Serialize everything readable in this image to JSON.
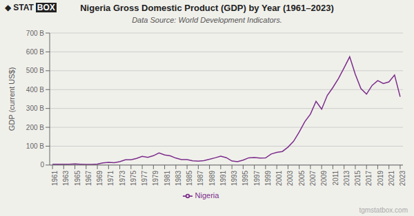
{
  "chart_data": {
    "type": "line",
    "title": "Nigeria Gross Domestic Product (GDP) by Year (1961–2023)",
    "subtitle": "Data Source: World Development Indicators.",
    "ylabel": "GDP (current US$)",
    "annotations": [
      "◆",
      "STAT",
      "BOX",
      "tgmstatbox.com"
    ],
    "x": [
      1961,
      1962,
      1963,
      1964,
      1965,
      1966,
      1967,
      1968,
      1969,
      1970,
      1971,
      1972,
      1973,
      1974,
      1975,
      1976,
      1977,
      1978,
      1979,
      1980,
      1981,
      1982,
      1983,
      1984,
      1985,
      1986,
      1987,
      1988,
      1989,
      1990,
      1991,
      1992,
      1993,
      1994,
      1995,
      1996,
      1997,
      1998,
      1999,
      2000,
      2001,
      2002,
      2003,
      2004,
      2005,
      2006,
      2007,
      2008,
      2009,
      2010,
      2011,
      2012,
      2013,
      2014,
      2015,
      2016,
      2017,
      2018,
      2019,
      2020,
      2021,
      2022,
      2023
    ],
    "series": [
      {
        "name": "Nigeria",
        "color": "#7B2D8B",
        "values": [
          4.2,
          3.9,
          3.9,
          4.4,
          5.8,
          4.6,
          3.7,
          3.7,
          5.2,
          11.5,
          14.4,
          12.7,
          18.1,
          28.0,
          27.7,
          35.3,
          46.0,
          41.0,
          49.5,
          64.2,
          53.6,
          48.9,
          36.7,
          28.6,
          29.0,
          22.4,
          20.6,
          23.6,
          30.7,
          38.5,
          47.3,
          39.0,
          21.2,
          17.8,
          26.0,
          38.3,
          40.1,
          36.8,
          37.5,
          58.6,
          67.0,
          72.0,
          95.0,
          126.0,
          175.0,
          230.0,
          270.0,
          338.0,
          296.0,
          369.0,
          411.0,
          459.0,
          515.0,
          574.0,
          481.0,
          405.0,
          376.0,
          422.0,
          448.0,
          432.0,
          441.0,
          477.0,
          362.0
        ]
      }
    ],
    "xlim": [
      1960.5,
      2023.5
    ],
    "xticks": [
      1961,
      1963,
      1965,
      1967,
      1969,
      1971,
      1973,
      1975,
      1977,
      1979,
      1981,
      1983,
      1985,
      1987,
      1989,
      1991,
      1993,
      1995,
      1997,
      1999,
      2001,
      2003,
      2005,
      2007,
      2009,
      2011,
      2013,
      2015,
      2017,
      2019,
      2021,
      2023
    ],
    "ylim": [
      0,
      700
    ],
    "yticks": [
      0,
      {
        "value": 100,
        "label": "100 B"
      },
      {
        "value": 200,
        "label": "200 B"
      },
      {
        "value": 300,
        "label": "300 B"
      },
      {
        "value": 400,
        "label": "400 B"
      },
      {
        "value": 500,
        "label": "500 B"
      },
      {
        "value": 600,
        "label": "600 B"
      },
      {
        "value": 700,
        "label": "700 B"
      }
    ],
    "grid": "y",
    "legend": "bottom",
    "background_color": "#f0f0eb"
  }
}
